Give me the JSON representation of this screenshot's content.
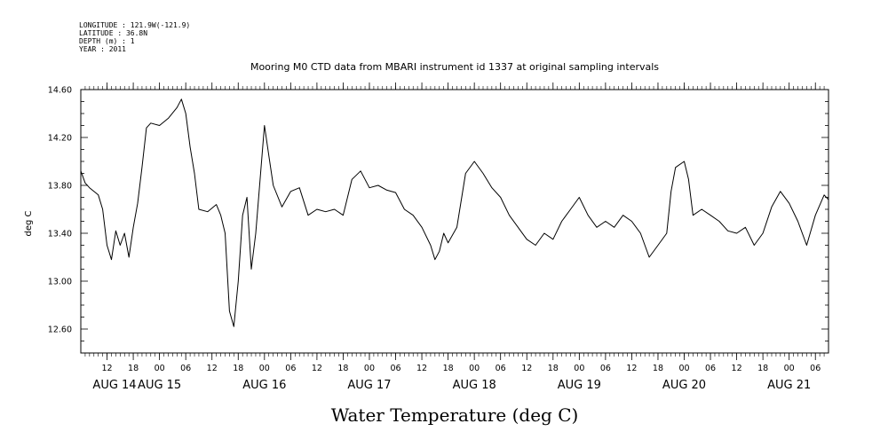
{
  "header": {
    "longitude": "LONGITUDE : 121.9W(-121.9)",
    "latitude": "LATITUDE : 36.8N",
    "depth": "DEPTH (m) : 1",
    "year": "YEAR : 2011"
  },
  "chart_data": {
    "type": "line",
    "title": "Mooring M0 CTD data from MBARI instrument id 1337 at original sampling intervals",
    "xlabel": "Water Temperature (deg C)",
    "ylabel": "deg C",
    "ylim": [
      12.4,
      14.6
    ],
    "xlim": [
      "2011-08-14T06:00",
      "2011-08-21T09:00"
    ],
    "y_ticks": [
      "12.60",
      "13.00",
      "13.40",
      "13.80",
      "14.20",
      "14.60"
    ],
    "hour_tick_labels": [
      "12",
      "18",
      "00",
      "06",
      "12",
      "18",
      "00",
      "06",
      "12",
      "18",
      "00",
      "06",
      "12",
      "18",
      "00",
      "06",
      "12",
      "18",
      "00",
      "06",
      "12",
      "18",
      "00",
      "06",
      "12",
      "18",
      "00",
      "06",
      "12",
      "18",
      "00",
      "06",
      "12",
      "18",
      "00",
      "06"
    ],
    "day_labels": [
      "AUG 14",
      "AUG 15",
      "AUG 16",
      "AUG 17",
      "AUG 18",
      "AUG 19",
      "AUG 20",
      "AUG 21"
    ],
    "grid": false,
    "series": [
      {
        "color": "#000000",
        "x": [
          "2011-08-14T06:00",
          "2011-08-14T07:00",
          "2011-08-14T08:00",
          "2011-08-14T10:00",
          "2011-08-14T11:00",
          "2011-08-14T12:00",
          "2011-08-14T13:00",
          "2011-08-14T14:00",
          "2011-08-14T15:00",
          "2011-08-14T16:00",
          "2011-08-14T17:00",
          "2011-08-14T18:00",
          "2011-08-14T19:00",
          "2011-08-14T20:00",
          "2011-08-14T21:00",
          "2011-08-14T22:00",
          "2011-08-15T00:00",
          "2011-08-15T02:00",
          "2011-08-15T04:00",
          "2011-08-15T05:00",
          "2011-08-15T06:00",
          "2011-08-15T07:00",
          "2011-08-15T08:00",
          "2011-08-15T09:00",
          "2011-08-15T11:00",
          "2011-08-15T13:00",
          "2011-08-15T14:00",
          "2011-08-15T15:00",
          "2011-08-15T16:00",
          "2011-08-15T17:00",
          "2011-08-15T18:00",
          "2011-08-15T19:00",
          "2011-08-15T20:00",
          "2011-08-15T21:00",
          "2011-08-15T22:00",
          "2011-08-15T23:00",
          "2011-08-16T00:00",
          "2011-08-16T01:00",
          "2011-08-16T02:00",
          "2011-08-16T04:00",
          "2011-08-16T06:00",
          "2011-08-16T08:00",
          "2011-08-16T10:00",
          "2011-08-16T12:00",
          "2011-08-16T14:00",
          "2011-08-16T16:00",
          "2011-08-16T18:00",
          "2011-08-16T20:00",
          "2011-08-16T22:00",
          "2011-08-17T00:00",
          "2011-08-17T02:00",
          "2011-08-17T04:00",
          "2011-08-17T06:00",
          "2011-08-17T08:00",
          "2011-08-17T10:00",
          "2011-08-17T12:00",
          "2011-08-17T14:00",
          "2011-08-17T15:00",
          "2011-08-17T16:00",
          "2011-08-17T17:00",
          "2011-08-17T18:00",
          "2011-08-17T20:00",
          "2011-08-17T22:00",
          "2011-08-18T00:00",
          "2011-08-18T02:00",
          "2011-08-18T04:00",
          "2011-08-18T06:00",
          "2011-08-18T08:00",
          "2011-08-18T10:00",
          "2011-08-18T12:00",
          "2011-08-18T14:00",
          "2011-08-18T16:00",
          "2011-08-18T18:00",
          "2011-08-18T20:00",
          "2011-08-18T22:00",
          "2011-08-19T00:00",
          "2011-08-19T02:00",
          "2011-08-19T04:00",
          "2011-08-19T06:00",
          "2011-08-19T08:00",
          "2011-08-19T10:00",
          "2011-08-19T12:00",
          "2011-08-19T14:00",
          "2011-08-19T16:00",
          "2011-08-19T18:00",
          "2011-08-19T20:00",
          "2011-08-19T21:00",
          "2011-08-19T22:00",
          "2011-08-20T00:00",
          "2011-08-20T01:00",
          "2011-08-20T02:00",
          "2011-08-20T04:00",
          "2011-08-20T06:00",
          "2011-08-20T08:00",
          "2011-08-20T10:00",
          "2011-08-20T12:00",
          "2011-08-20T14:00",
          "2011-08-20T16:00",
          "2011-08-20T18:00",
          "2011-08-20T20:00",
          "2011-08-20T22:00",
          "2011-08-21T00:00",
          "2011-08-21T02:00",
          "2011-08-21T04:00",
          "2011-08-21T06:00",
          "2011-08-21T08:00",
          "2011-08-21T09:00"
        ],
        "values": [
          13.92,
          13.82,
          13.78,
          13.72,
          13.6,
          13.3,
          13.18,
          13.42,
          13.3,
          13.4,
          13.2,
          13.45,
          13.65,
          13.95,
          14.28,
          14.32,
          14.3,
          14.36,
          14.45,
          14.52,
          14.4,
          14.12,
          13.9,
          13.6,
          13.58,
          13.64,
          13.55,
          13.4,
          12.75,
          12.62,
          13.0,
          13.55,
          13.7,
          13.1,
          13.4,
          13.85,
          14.3,
          14.05,
          13.8,
          13.62,
          13.75,
          13.78,
          13.55,
          13.6,
          13.58,
          13.6,
          13.55,
          13.85,
          13.92,
          13.78,
          13.8,
          13.76,
          13.74,
          13.6,
          13.55,
          13.45,
          13.3,
          13.18,
          13.25,
          13.4,
          13.32,
          13.45,
          13.9,
          14.0,
          13.9,
          13.78,
          13.7,
          13.55,
          13.45,
          13.35,
          13.3,
          13.4,
          13.35,
          13.5,
          13.6,
          13.7,
          13.55,
          13.45,
          13.5,
          13.45,
          13.55,
          13.5,
          13.4,
          13.2,
          13.3,
          13.4,
          13.75,
          13.95,
          14.0,
          13.85,
          13.55,
          13.6,
          13.55,
          13.5,
          13.42,
          13.4,
          13.45,
          13.3,
          13.4,
          13.62,
          13.75,
          13.65,
          13.5,
          13.3,
          13.55,
          13.72,
          13.68
        ]
      }
    ]
  }
}
